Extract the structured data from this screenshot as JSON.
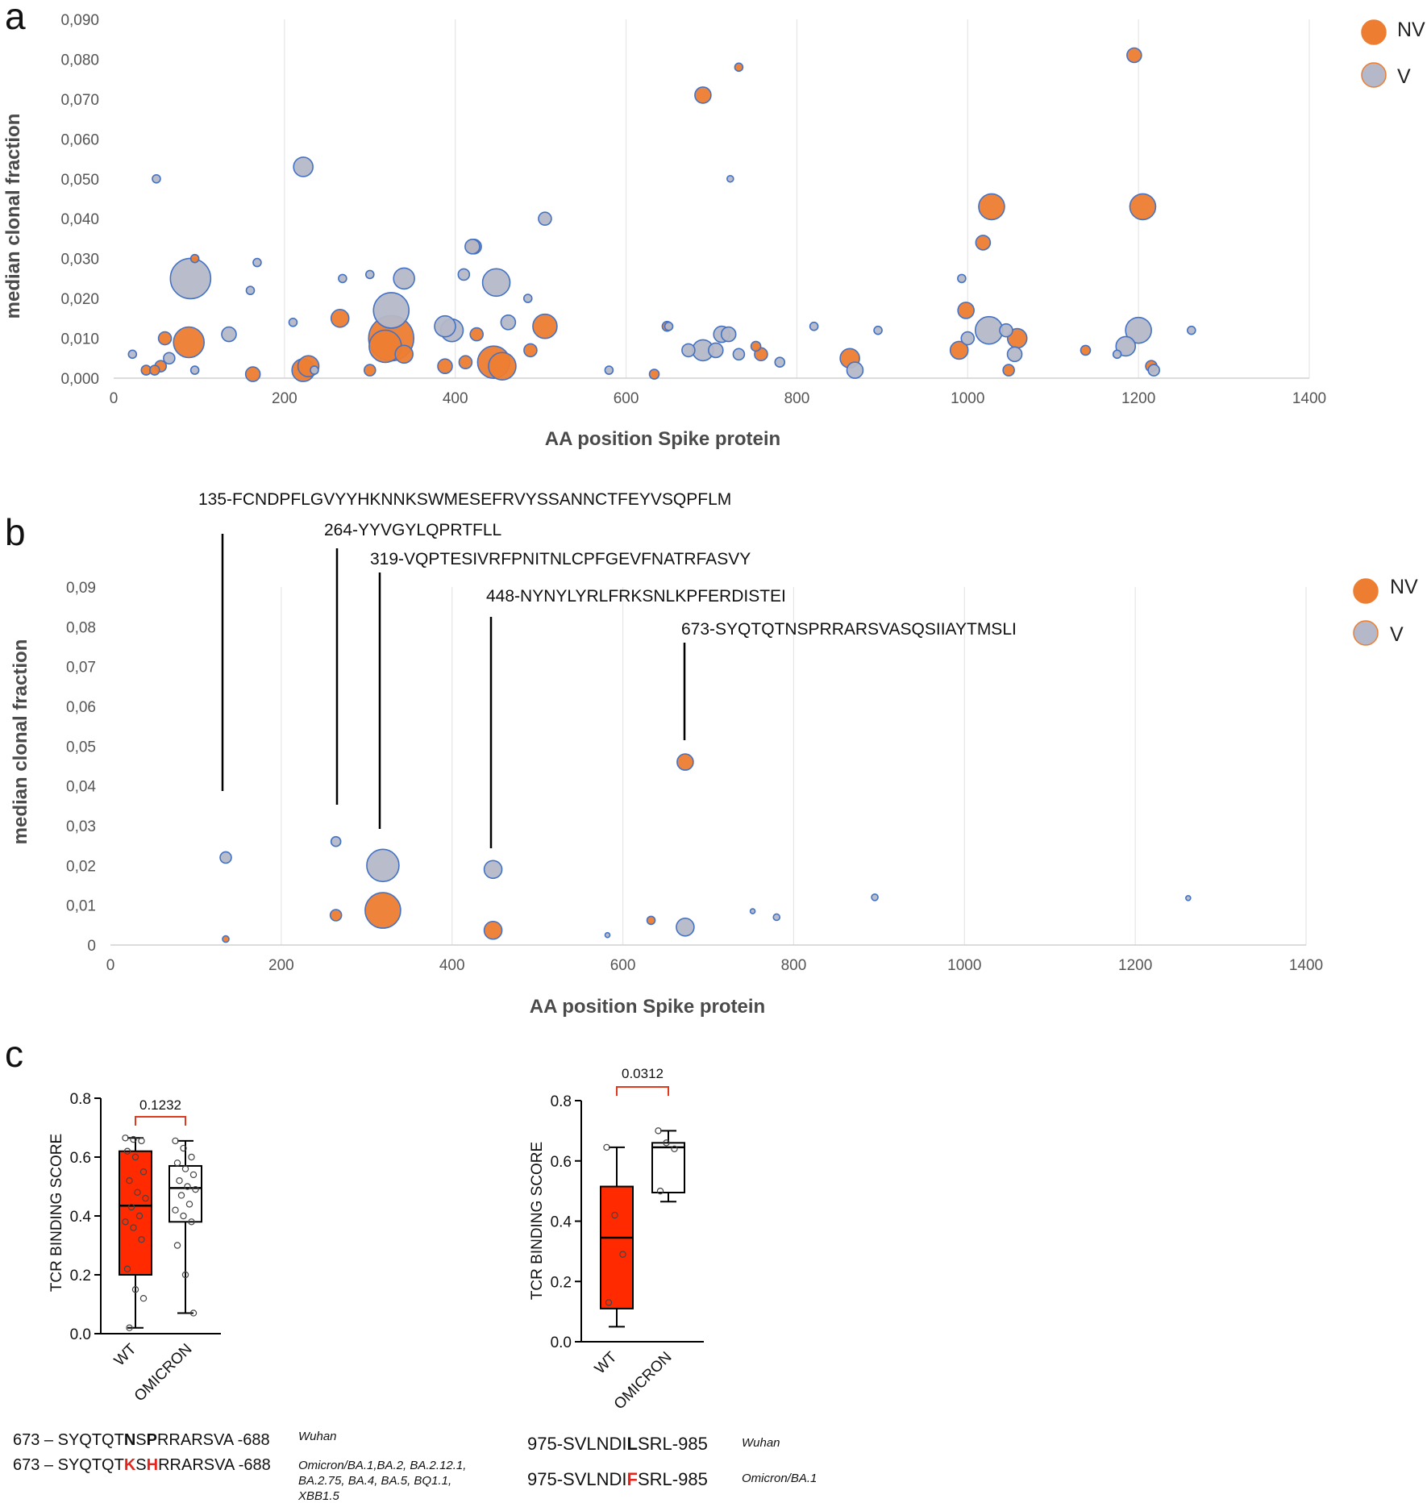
{
  "figure": {
    "panels": [
      "a",
      "b",
      "c"
    ],
    "legend": [
      {
        "label": "NV",
        "color": "#ED7D31"
      },
      {
        "label": "V",
        "color": "#B4B8C8"
      }
    ],
    "colors": {
      "nv": "#ED7D31",
      "v": "#B4B8C8",
      "outline": "#4472C4",
      "box_wt": "#FF2A00",
      "bracket": "#E03A1E"
    }
  },
  "chart_data": [
    {
      "id": "panel-a",
      "type": "scatter",
      "variant": "bubble",
      "xlabel": "AA position Spike protein",
      "ylabel": "median clonal fraction",
      "xlim": [
        0,
        1400
      ],
      "ylim": [
        0,
        0.09
      ],
      "xticks": [
        "0",
        "200",
        "400",
        "600",
        "800",
        "1000",
        "1200",
        "1400"
      ],
      "yticks": [
        "0,000",
        "0,010",
        "0,020",
        "0,030",
        "0,040",
        "0,050",
        "0,060",
        "0,070",
        "0,080",
        "0,090"
      ],
      "grid": "vertical",
      "legend_position": "top-right",
      "series": [
        {
          "name": "NV",
          "points": [
            [
              38,
              0.002,
              6
            ],
            [
              48,
              0.002,
              6
            ],
            [
              55,
              0.003,
              7
            ],
            [
              60,
              0.01,
              8
            ],
            [
              95,
              0.03,
              5
            ],
            [
              88,
              0.009,
              19
            ],
            [
              163,
              0.001,
              9
            ],
            [
              222,
              0.002,
              14
            ],
            [
              228,
              0.003,
              13
            ],
            [
              265,
              0.015,
              11
            ],
            [
              300,
              0.002,
              7
            ],
            [
              318,
              0.008,
              20
            ],
            [
              325,
              0.01,
              28
            ],
            [
              340,
              0.006,
              11
            ],
            [
              388,
              0.003,
              9
            ],
            [
              412,
              0.004,
              8
            ],
            [
              422,
              0.033,
              9
            ],
            [
              425,
              0.011,
              8
            ],
            [
              445,
              0.004,
              20
            ],
            [
              455,
              0.003,
              17
            ],
            [
              488,
              0.007,
              8
            ],
            [
              505,
              0.013,
              15
            ],
            [
              648,
              0.013,
              6
            ],
            [
              633,
              0.001,
              6
            ],
            [
              690,
              0.071,
              10
            ],
            [
              732,
              0.078,
              5
            ],
            [
              752,
              0.008,
              6
            ],
            [
              758,
              0.006,
              8
            ],
            [
              862,
              0.005,
              12
            ],
            [
              990,
              0.007,
              11
            ],
            [
              998,
              0.017,
              10
            ],
            [
              1018,
              0.034,
              9
            ],
            [
              1028,
              0.043,
              16
            ],
            [
              1048,
              0.002,
              7
            ],
            [
              1058,
              0.01,
              12
            ],
            [
              1138,
              0.007,
              6
            ],
            [
              1195,
              0.081,
              9
            ],
            [
              1205,
              0.043,
              16
            ],
            [
              1215,
              0.003,
              7
            ]
          ]
        },
        {
          "name": "V",
          "points": [
            [
              22,
              0.006,
              5
            ],
            [
              50,
              0.05,
              5
            ],
            [
              65,
              0.005,
              7
            ],
            [
              90,
              0.025,
              25
            ],
            [
              95,
              0.002,
              5
            ],
            [
              135,
              0.011,
              9
            ],
            [
              160,
              0.022,
              5
            ],
            [
              168,
              0.029,
              5
            ],
            [
              210,
              0.014,
              5
            ],
            [
              222,
              0.053,
              12
            ],
            [
              235,
              0.002,
              5
            ],
            [
              268,
              0.025,
              5
            ],
            [
              300,
              0.026,
              5
            ],
            [
              325,
              0.017,
              22
            ],
            [
              340,
              0.025,
              13
            ],
            [
              388,
              0.013,
              13
            ],
            [
              396,
              0.012,
              14
            ],
            [
              410,
              0.026,
              7
            ],
            [
              420,
              0.033,
              9
            ],
            [
              448,
              0.024,
              17
            ],
            [
              462,
              0.014,
              9
            ],
            [
              485,
              0.02,
              5
            ],
            [
              505,
              0.04,
              8
            ],
            [
              580,
              0.002,
              5
            ],
            [
              650,
              0.013,
              5
            ],
            [
              673,
              0.007,
              8
            ],
            [
              690,
              0.007,
              13
            ],
            [
              705,
              0.007,
              9
            ],
            [
              712,
              0.011,
              10
            ],
            [
              720,
              0.011,
              9
            ],
            [
              722,
              0.05,
              4
            ],
            [
              732,
              0.006,
              7
            ],
            [
              780,
              0.004,
              6
            ],
            [
              820,
              0.013,
              5
            ],
            [
              868,
              0.002,
              10
            ],
            [
              895,
              0.012,
              5
            ],
            [
              993,
              0.025,
              5
            ],
            [
              1000,
              0.01,
              8
            ],
            [
              1025,
              0.012,
              17
            ],
            [
              1045,
              0.012,
              8
            ],
            [
              1055,
              0.006,
              9
            ],
            [
              1175,
              0.006,
              5
            ],
            [
              1185,
              0.008,
              12
            ],
            [
              1200,
              0.012,
              16
            ],
            [
              1218,
              0.002,
              7
            ],
            [
              1262,
              0.012,
              5
            ]
          ]
        }
      ]
    },
    {
      "id": "panel-b",
      "type": "scatter",
      "variant": "bubble",
      "xlabel": "AA position Spike protein",
      "ylabel": "median clonal fraction",
      "xlim": [
        0,
        1400
      ],
      "ylim": [
        0,
        0.09
      ],
      "xticks": [
        "0",
        "200",
        "400",
        "600",
        "800",
        "1000",
        "1200",
        "1400"
      ],
      "yticks": [
        "0",
        "0,01",
        "0,02",
        "0,03",
        "0,04",
        "0,05",
        "0,06",
        "0,07",
        "0,08",
        "0,09"
      ],
      "grid": "vertical",
      "legend_position": "top-right",
      "annotations": [
        {
          "label": "135-FCNDPFLGVYYHKNNKSWMESEFRVYSSANNCTFEYVSQPFLM",
          "x": 135
        },
        {
          "label": "264-YYVGYLQPRTFLL",
          "x": 266
        },
        {
          "label": "319-VQPTESIVRFPNITNLCPFGEVFNATRFASVY",
          "x": 316
        },
        {
          "label": "448-NYNYLYRLFRKSNLKPFERDISTEI",
          "x": 446
        },
        {
          "label": "673-SYQTQTNSPRRARSVASQSIIAYTMSLI",
          "x": 673
        }
      ],
      "series": [
        {
          "name": "NV",
          "points": [
            [
              135,
              0.0015,
              4
            ],
            [
              264,
              0.0075,
              7
            ],
            [
              319,
              0.0087,
              22
            ],
            [
              448,
              0.0037,
              11
            ],
            [
              633,
              0.0062,
              5
            ],
            [
              673,
              0.046,
              10
            ]
          ]
        },
        {
          "name": "V",
          "points": [
            [
              135,
              0.022,
              7
            ],
            [
              264,
              0.026,
              6
            ],
            [
              319,
              0.02,
              20
            ],
            [
              448,
              0.019,
              11
            ],
            [
              582,
              0.0025,
              3
            ],
            [
              673,
              0.0045,
              11
            ],
            [
              752,
              0.0085,
              3
            ],
            [
              780,
              0.007,
              4
            ],
            [
              895,
              0.012,
              4
            ],
            [
              1262,
              0.0118,
              3
            ]
          ]
        }
      ]
    },
    {
      "id": "panel-c-left",
      "type": "box",
      "ylabel": "TCR BINDING SCORE",
      "ylim": [
        0,
        0.8
      ],
      "yticks": [
        "0.0",
        "0.2",
        "0.4",
        "0.6",
        "0.8"
      ],
      "categories": [
        "WT",
        "OMICRON"
      ],
      "pvalue": "0.1232",
      "boxes": [
        {
          "name": "WT",
          "min": 0.02,
          "q1": 0.2,
          "median": 0.435,
          "q3": 0.62,
          "max": 0.665,
          "points": [
            0.665,
            0.66,
            0.655,
            0.62,
            0.6,
            0.55,
            0.52,
            0.48,
            0.46,
            0.43,
            0.4,
            0.38,
            0.36,
            0.32,
            0.22,
            0.15,
            0.12,
            0.02
          ]
        },
        {
          "name": "OMICRON",
          "min": 0.07,
          "q1": 0.38,
          "median": 0.495,
          "q3": 0.57,
          "max": 0.655,
          "points": [
            0.655,
            0.63,
            0.6,
            0.58,
            0.56,
            0.54,
            0.52,
            0.5,
            0.49,
            0.47,
            0.44,
            0.42,
            0.4,
            0.38,
            0.3,
            0.2,
            0.07
          ]
        }
      ]
    },
    {
      "id": "panel-c-right",
      "type": "box",
      "ylabel": "TCR BINDING SCORE",
      "ylim": [
        0,
        0.8
      ],
      "yticks": [
        "0.0",
        "0.2",
        "0.4",
        "0.6",
        "0.8"
      ],
      "categories": [
        "WT",
        "OMICRON"
      ],
      "pvalue": "0.0312",
      "boxes": [
        {
          "name": "WT",
          "min": 0.05,
          "q1": 0.11,
          "median": 0.345,
          "q3": 0.515,
          "max": 0.645,
          "points": [
            0.645,
            0.42,
            0.29,
            0.13
          ]
        },
        {
          "name": "OMICRON",
          "min": 0.465,
          "q1": 0.495,
          "median": 0.645,
          "q3": 0.66,
          "max": 0.7,
          "points": [
            0.7,
            0.66,
            0.64,
            0.5
          ]
        }
      ]
    }
  ],
  "sequences": {
    "left": [
      {
        "prefix": "673 – SYQTQT",
        "mutation1": "N",
        "middle": "S",
        "mutation2": "P",
        "suffix": "RRARSVA -688",
        "variant_lines": [
          "Wuhan"
        ],
        "mutated": false
      },
      {
        "prefix": "673 – SYQTQT",
        "mutation1": "K",
        "middle": "S",
        "mutation2": "H",
        "suffix": "RRARSVA -688",
        "variant_lines": [
          "Omicron/BA.1,BA.2, BA.2.12.1,",
          "BA.2.75, BA.4, BA.5, BQ1.1,",
          "XBB1.5"
        ],
        "mutated": true
      }
    ],
    "right": [
      {
        "prefix": "975-SVLNDI",
        "mutation": "L",
        "suffix": "SRL-985",
        "variant_lines": [
          "Wuhan"
        ],
        "mutated": false
      },
      {
        "prefix": "975-SVLNDI",
        "mutation": "F",
        "suffix": "SRL-985",
        "variant_lines": [
          "Omicron/BA.1"
        ],
        "mutated": true
      }
    ]
  }
}
